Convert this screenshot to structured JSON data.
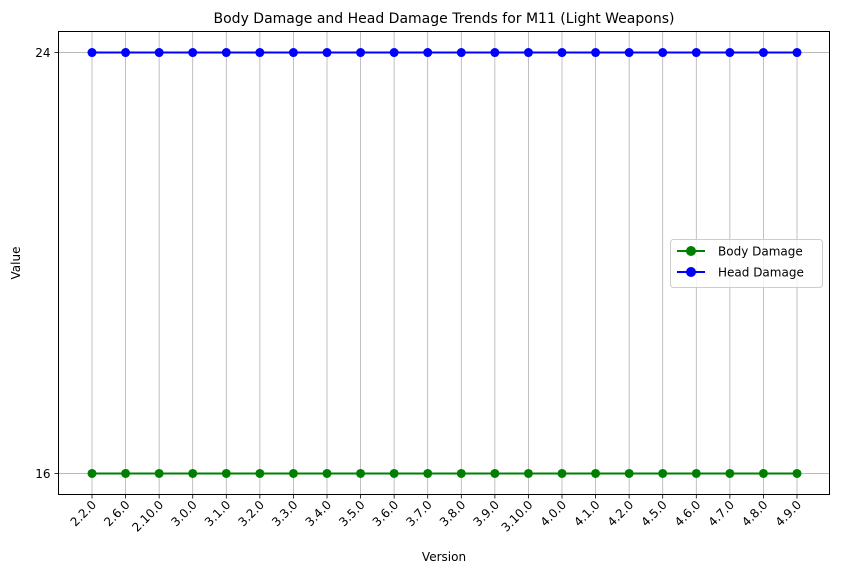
{
  "chart_data": {
    "type": "line",
    "title": "Body Damage and Head Damage Trends for M11 (Light Weapons)",
    "xlabel": "Version",
    "ylabel": "Value",
    "categories": [
      "2.2.0",
      "2.6.0",
      "2.10.0",
      "3.0.0",
      "3.1.0",
      "3.2.0",
      "3.3.0",
      "3.4.0",
      "3.5.0",
      "3.6.0",
      "3.7.0",
      "3.8.0",
      "3.9.0",
      "3.10.0",
      "4.0.0",
      "4.1.0",
      "4.2.0",
      "4.5.0",
      "4.6.0",
      "4.7.0",
      "4.8.0",
      "4.9.0"
    ],
    "yticks": [
      16,
      24
    ],
    "ylim": [
      15.6,
      24.4
    ],
    "grid": true,
    "legend_position": "center-right",
    "series": [
      {
        "name": "Body Damage",
        "color": "#008000",
        "values": [
          16,
          16,
          16,
          16,
          16,
          16,
          16,
          16,
          16,
          16,
          16,
          16,
          16,
          16,
          16,
          16,
          16,
          16,
          16,
          16,
          16,
          16
        ]
      },
      {
        "name": "Head Damage",
        "color": "#0000ff",
        "values": [
          24,
          24,
          24,
          24,
          24,
          24,
          24,
          24,
          24,
          24,
          24,
          24,
          24,
          24,
          24,
          24,
          24,
          24,
          24,
          24,
          24,
          24
        ]
      }
    ]
  }
}
